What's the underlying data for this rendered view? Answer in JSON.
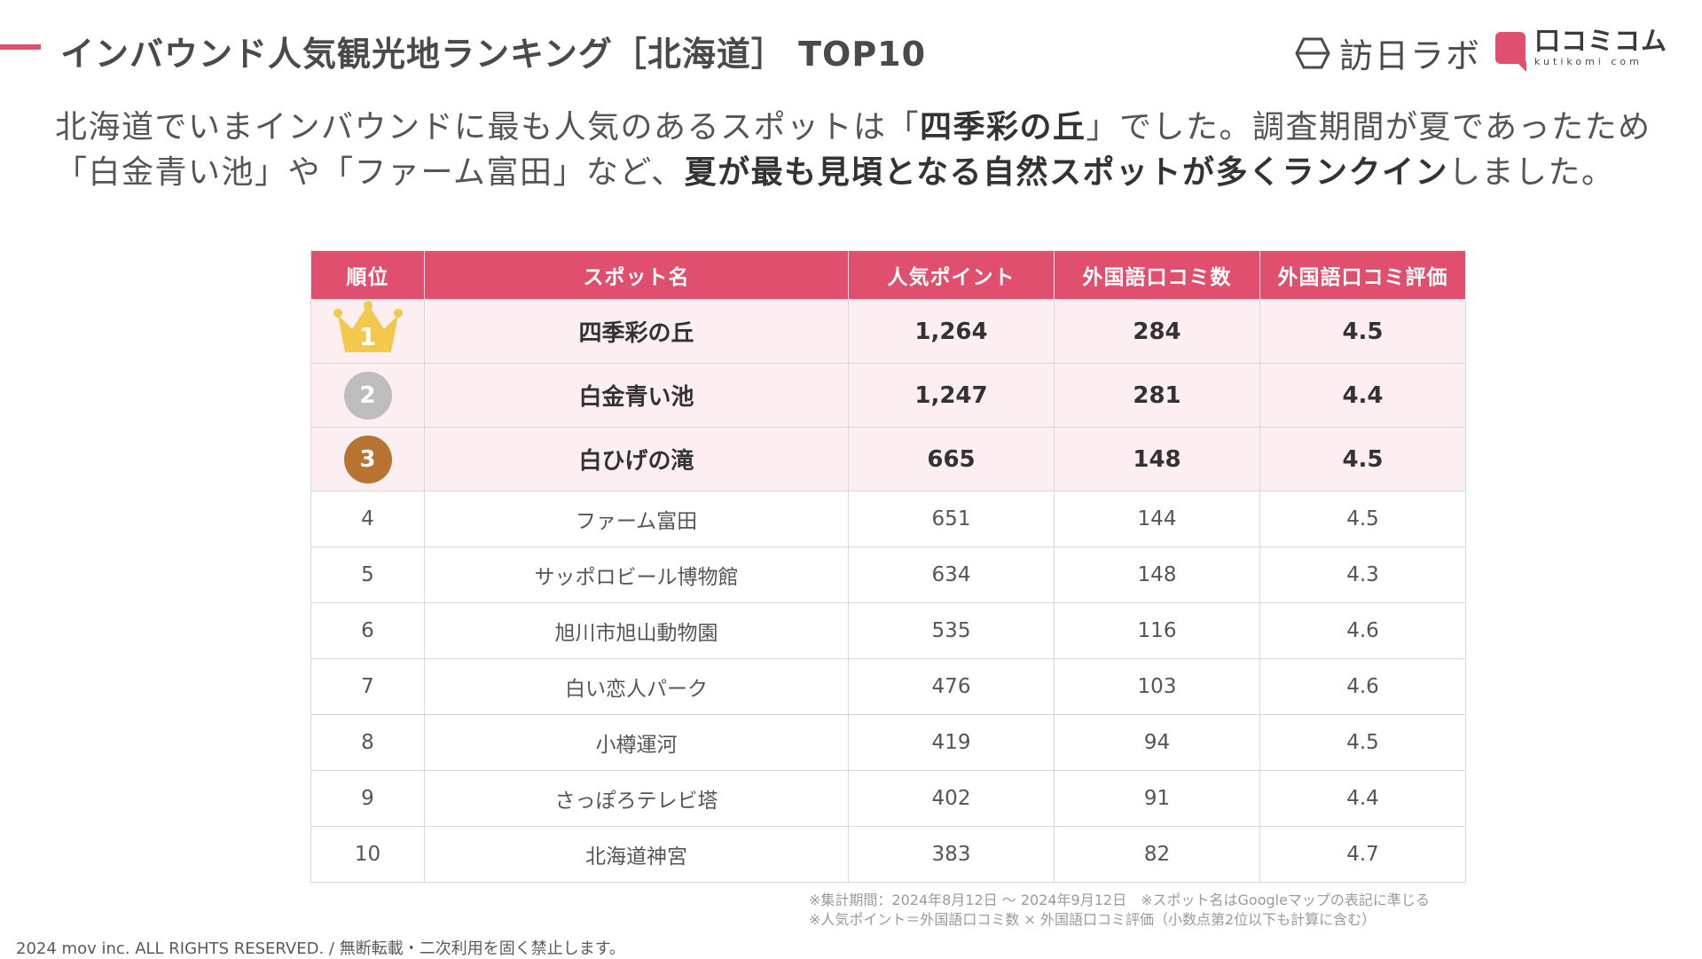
{
  "header": {
    "title": "インバウンド人気観光地ランキング［北海道］ TOP10",
    "brand_houn": "訪日ラボ",
    "brand_kutikomi": "口コミコム",
    "brand_kutikomi_sub": "kutikomi com"
  },
  "intro": {
    "p1": "北海道でいまインバウンドに最も人気のあるスポットは「",
    "p1_strong": "四季彩の丘",
    "p2": "」でした。調査期間が夏であったため「白金青い池」や「ファーム富田」など、",
    "p2_strong": "夏が最も見頃となる自然スポットが多くランクイン",
    "p3": "しました。"
  },
  "table": {
    "headers": [
      "順位",
      "スポット名",
      "人気ポイント",
      "外国語口コミ数",
      "外国語口コミ評価"
    ],
    "rows": [
      {
        "rank": "1",
        "name": "四季彩の丘",
        "points": "1,264",
        "reviews": "284",
        "rating": "4.5"
      },
      {
        "rank": "2",
        "name": "白金青い池",
        "points": "1,247",
        "reviews": "281",
        "rating": "4.4"
      },
      {
        "rank": "3",
        "name": "白ひげの滝",
        "points": "665",
        "reviews": "148",
        "rating": "4.5"
      },
      {
        "rank": "4",
        "name": "ファーム富田",
        "points": "651",
        "reviews": "144",
        "rating": "4.5"
      },
      {
        "rank": "5",
        "name": "サッポロビール博物館",
        "points": "634",
        "reviews": "148",
        "rating": "4.3"
      },
      {
        "rank": "6",
        "name": "旭川市旭山動物園",
        "points": "535",
        "reviews": "116",
        "rating": "4.6"
      },
      {
        "rank": "7",
        "name": "白い恋人パーク",
        "points": "476",
        "reviews": "103",
        "rating": "4.6"
      },
      {
        "rank": "8",
        "name": "小樽運河",
        "points": "419",
        "reviews": "94",
        "rating": "4.5"
      },
      {
        "rank": "9",
        "name": "さっぽろテレビ塔",
        "points": "402",
        "reviews": "91",
        "rating": "4.4"
      },
      {
        "rank": "10",
        "name": "北海道神宮",
        "points": "383",
        "reviews": "82",
        "rating": "4.7"
      }
    ]
  },
  "notes": {
    "line1": "※集計期間：2024年8月12日 〜 2024年9月12日　※スポット名はGoogleマップの表記に準じる",
    "line2": "※人気ポイント＝外国語口コミ数 × 外国語口コミ評価（小数点第2位以下も計算に含む）"
  },
  "footer": {
    "copyright": "2024 mov inc. ALL RIGHTS RESERVED. / 無断転載・二次利用を固く禁止します。"
  },
  "colors": {
    "accent": "#e0506e",
    "top_row_bg": "#fdeef2",
    "gold": "#f2c94c",
    "silver": "#bdbdbd",
    "bronze": "#b87333"
  },
  "icons": {
    "houn_logo": "hexagon-logo-icon",
    "kutikomi_logo": "speech-bubble-icon",
    "rank1": "crown-icon",
    "rank2": "silver-medal-icon",
    "rank3": "bronze-medal-icon"
  }
}
